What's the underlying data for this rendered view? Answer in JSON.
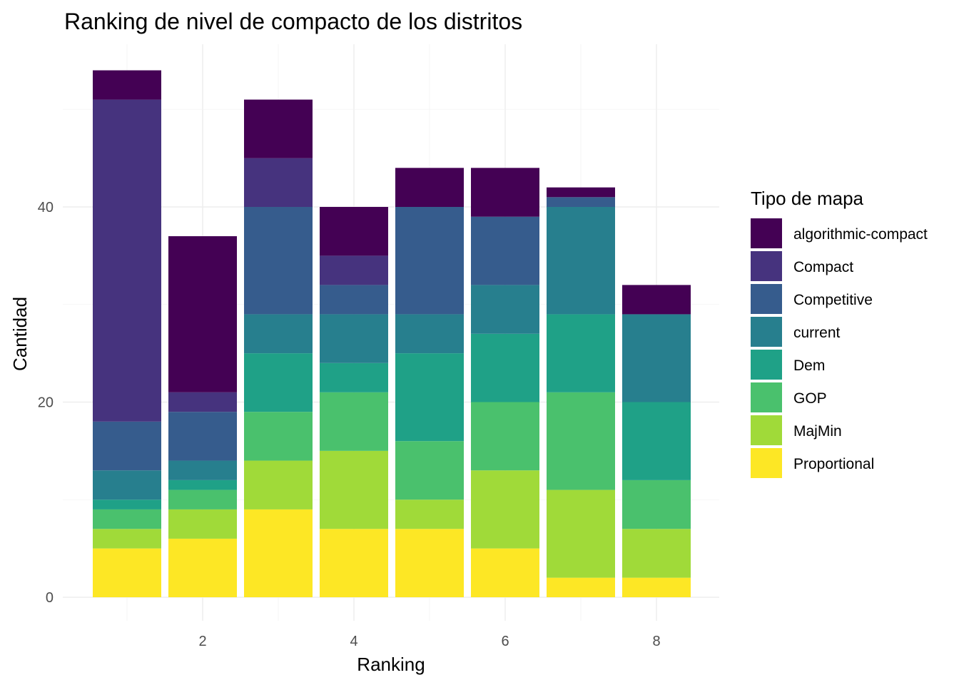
{
  "chart_data": {
    "type": "bar",
    "stacked": true,
    "title": "Ranking de nivel de compacto de los distritos",
    "xlabel": "Ranking",
    "ylabel": "Cantidad",
    "categories": [
      1,
      2,
      3,
      4,
      5,
      6,
      7,
      8
    ],
    "x_ticks": [
      2,
      4,
      6,
      8
    ],
    "y_ticks": [
      0,
      20,
      40
    ],
    "xlim": [
      0.5,
      8.5
    ],
    "ylim": [
      0,
      54
    ],
    "grid": true,
    "legend": {
      "title": "Tipo de mapa",
      "position": "right"
    },
    "series": [
      {
        "name": "algorithmic-compact",
        "color": "#440154",
        "values": [
          3,
          16,
          6,
          5,
          4,
          5,
          1,
          3
        ]
      },
      {
        "name": "Compact",
        "color": "#46337E",
        "values": [
          33,
          2,
          5,
          3,
          0,
          0,
          0,
          0
        ]
      },
      {
        "name": "Competitive",
        "color": "#365C8D",
        "values": [
          5,
          5,
          11,
          3,
          11,
          7,
          1,
          0
        ]
      },
      {
        "name": "current",
        "color": "#277F8E",
        "values": [
          3,
          2,
          4,
          5,
          4,
          5,
          11,
          9
        ]
      },
      {
        "name": "Dem",
        "color": "#1FA187",
        "values": [
          1,
          1,
          6,
          3,
          9,
          7,
          8,
          8
        ]
      },
      {
        "name": "GOP",
        "color": "#4AC16D",
        "values": [
          2,
          2,
          5,
          6,
          6,
          7,
          10,
          5
        ]
      },
      {
        "name": "MajMin",
        "color": "#A0DA39",
        "values": [
          2,
          3,
          5,
          8,
          3,
          8,
          9,
          5
        ]
      },
      {
        "name": "Proportional",
        "color": "#FDE725",
        "values": [
          5,
          6,
          9,
          7,
          7,
          5,
          2,
          2
        ]
      }
    ]
  }
}
